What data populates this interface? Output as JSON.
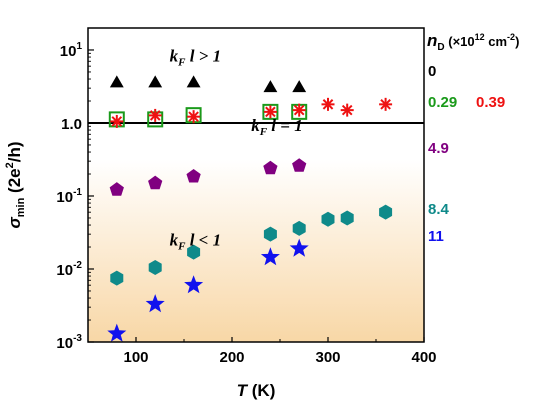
{
  "chart_data": {
    "type": "scatter",
    "x_scale": "linear",
    "y_scale": "log",
    "xlim": [
      50,
      400
    ],
    "ylim": [
      0.001,
      20
    ],
    "x_ticks": [
      "100",
      "200",
      "300",
      "400"
    ],
    "y_ticks": [
      {
        "base": "10",
        "exp": "1",
        "value": 10
      },
      {
        "base": "1.0",
        "exp": "",
        "value": 1
      },
      {
        "base": "10",
        "exp": "-1",
        "value": 0.1
      },
      {
        "base": "10",
        "exp": "-2",
        "value": 0.01
      },
      {
        "base": "10",
        "exp": "-3",
        "value": 0.001
      }
    ],
    "xlabel": {
      "main": "T",
      "unit": " (K)"
    },
    "ylabel": {
      "main": "σ",
      "sub": "min",
      "unit": " (2e",
      "sup": "2",
      "tail": "/h)"
    },
    "legend_title": {
      "main": "n",
      "sub": "D",
      "unit": " (×10",
      "sup": "12",
      "tail": " cm",
      "sup2": "-2",
      "close": ")"
    },
    "reference_line": {
      "y": 1.0
    },
    "annotations": [
      {
        "k": "k",
        "sub": "F",
        "rest": " l > 1",
        "x": 135,
        "y": 7.0
      },
      {
        "k": "k",
        "sub": "F",
        "rest": " l = 1",
        "x": 220,
        "y": 0.78
      },
      {
        "k": "k",
        "sub": "F",
        "rest": " l < 1",
        "x": 135,
        "y": 0.021
      }
    ],
    "series": [
      {
        "name": "0",
        "marker": "triangle",
        "color": "#000000",
        "x": [
          80,
          120,
          160,
          240,
          270
        ],
        "y": [
          3.6,
          3.6,
          3.6,
          3.1,
          3.1
        ]
      },
      {
        "name": "0.29",
        "marker": "open-square",
        "color": "#1a9a1a",
        "x": [
          80,
          120,
          160,
          240,
          270
        ],
        "y": [
          1.12,
          1.12,
          1.28,
          1.42,
          1.42
        ]
      },
      {
        "name": "0.39",
        "marker": "asterisk",
        "color": "#ee1111",
        "x": [
          80,
          120,
          160,
          240,
          270,
          300,
          320,
          360
        ],
        "y": [
          1.05,
          1.27,
          1.22,
          1.42,
          1.5,
          1.8,
          1.5,
          1.8
        ]
      },
      {
        "name": "4.9",
        "marker": "pentagon",
        "color": "#800080",
        "x": [
          80,
          120,
          160,
          240,
          270
        ],
        "y": [
          0.122,
          0.15,
          0.185,
          0.24,
          0.26
        ]
      },
      {
        "name": "8.4",
        "marker": "hexagon",
        "color": "#0f8a8a",
        "x": [
          80,
          120,
          160,
          240,
          270,
          300,
          320,
          360
        ],
        "y": [
          0.0075,
          0.0105,
          0.017,
          0.03,
          0.036,
          0.048,
          0.05,
          0.06
        ]
      },
      {
        "name": "11",
        "marker": "star",
        "color": "#1111ee",
        "x": [
          80,
          120,
          160,
          240,
          270
        ],
        "y": [
          0.0013,
          0.0033,
          0.006,
          0.0145,
          0.019
        ]
      }
    ]
  }
}
